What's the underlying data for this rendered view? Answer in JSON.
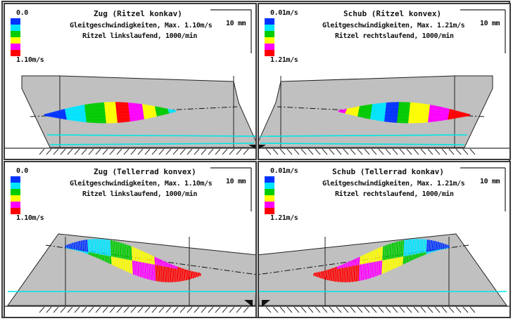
{
  "colors": {
    "scale": [
      "#0033ff",
      "#00e5ff",
      "#00cc00",
      "#ffff00",
      "#ff00ff",
      "#ff0000"
    ],
    "flank": "#c0c0c0",
    "cyan_line": "#00e5e5",
    "outline": "#3a3a3a"
  },
  "panels": [
    {
      "title": "Zug  (Ritzel konkav)",
      "line1": "Gleitgeschwindigkeiten, Max. 1.10m/s",
      "line2": "Ritzel linkslaufend, 1000/min",
      "scale_top": "0.0",
      "scale_bottom": "1.10m/s",
      "scalebar": "10 mm"
    },
    {
      "title": "Schub  (Ritzel konvex)",
      "line1": "Gleitgeschwindigkeiten, Max. 1.21m/s",
      "line2": "Ritzel rechtslaufend, 1000/min",
      "scale_top": "0.01m/s",
      "scale_bottom": "1.21m/s",
      "scalebar": "10 mm"
    },
    {
      "title": "Zug  (Tellerrad konvex)",
      "line1": "Gleitgeschwindigkeiten, Max. 1.10m/s",
      "line2": "Ritzel linkslaufend, 1000/min",
      "scale_top": "0.0",
      "scale_bottom": "1.10m/s",
      "scalebar": "10 mm"
    },
    {
      "title": "Schub  (Tellerrad konkav)",
      "line1": "Gleitgeschwindigkeiten, Max. 1.21m/s",
      "line2": "Ritzel rechtslaufend, 1000/min",
      "scale_top": "0.01m/s",
      "scale_bottom": "1.21m/s",
      "scalebar": "10 mm"
    }
  ]
}
